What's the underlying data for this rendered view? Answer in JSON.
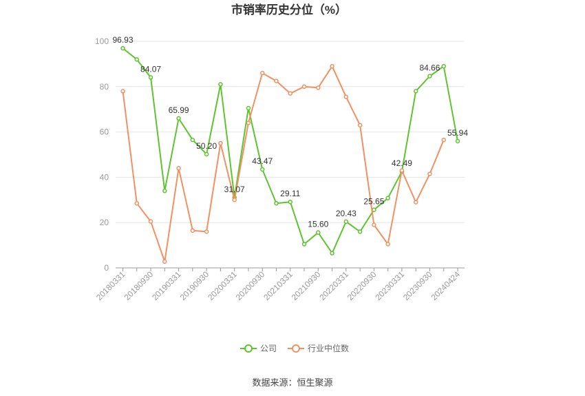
{
  "chart_data": {
    "type": "line",
    "title": "市销率历史分位（%）",
    "source": "数据来源：恒生聚源",
    "ylim": [
      0,
      100
    ],
    "yticks": [
      0,
      20,
      40,
      60,
      80,
      100
    ],
    "xtick_labels": [
      "20180331",
      "20180930",
      "20190331",
      "20190930",
      "20200331",
      "20200930",
      "20210331",
      "20210930",
      "20220331",
      "20220930",
      "20230331",
      "20230930",
      "20240424"
    ],
    "categories": [
      "20180331",
      "20180630",
      "20180930",
      "20181231",
      "20190331",
      "20190630",
      "20190930",
      "20191231",
      "20200331",
      "20200630",
      "20200930",
      "20201231",
      "20210331",
      "20210630",
      "20210930",
      "20211231",
      "20220331",
      "20220630",
      "20220930",
      "20221231",
      "20230331",
      "20230630",
      "20230930",
      "20231231",
      "20240424"
    ],
    "series": [
      {
        "name": "公司",
        "color": "#5dc42e",
        "values": [
          96.93,
          92.0,
          84.07,
          34.0,
          65.99,
          56.5,
          50.2,
          81.0,
          31.07,
          70.5,
          43.47,
          28.5,
          29.11,
          10.5,
          15.6,
          6.5,
          20.43,
          16.0,
          25.65,
          30.8,
          42.49,
          78.0,
          84.66,
          89.0,
          55.94
        ],
        "labels": {
          "0": "96.93",
          "2": "84.07",
          "4": "65.99",
          "6": "50.20",
          "8": "31.07",
          "10": "43.47",
          "12": "29.11",
          "14": "15.60",
          "16": "20.43",
          "18": "25.65",
          "20": "42.49",
          "22": "84.66",
          "24": "55.94"
        }
      },
      {
        "name": "行业中位数",
        "color": "#f39062",
        "values": [
          78.0,
          28.5,
          20.5,
          2.8,
          44.0,
          16.5,
          16.0,
          55.0,
          30.0,
          64.0,
          86.0,
          82.5,
          77.0,
          80.0,
          79.5,
          89.0,
          75.5,
          63.0,
          19.0,
          10.5,
          43.0,
          29.0,
          41.5,
          56.5,
          null
        ]
      }
    ],
    "legend_position": "bottom"
  }
}
